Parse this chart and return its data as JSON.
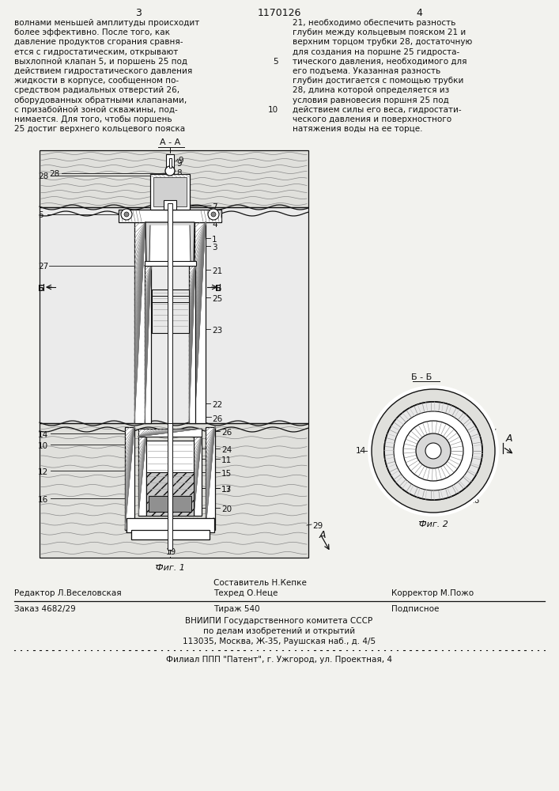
{
  "page_width": 7.07,
  "page_height": 10.0,
  "bg_color": "#f2f2ee",
  "text_color": "#111111",
  "header_left_num": "3",
  "header_center": "1170126",
  "header_right_num": "4",
  "col1_text": "волнами меньшей амплитуды происходит\nболее эффективно. После того, как\nдавление продуктов сгорания сравня-\nется с гидростатическим, открывают\nвыхлопной клапан 5, и поршень 25 под\nдействием гидростатического давления\nжидкости в корпусе, сообщенном по-\nсредством радиальных отверстий 26,\nоборудованных обратными клапанами,\nс призабойной зоной скважины, под-\nнимается. Для того, чтобы поршень\n25 достиг верхнего кольцевого пояска",
  "col2_text": "21, необходимо обеспечить разность\nглубин между кольцевым пояском 21 и\nверхним торцом трубки 28, достаточную\nдля создания на поршне 25 гидроста-\nтического давления, необходимого для\nего подъема. Указанная разность\nглубин достигается с помощью трубки\n28, длина которой определяется из\nусловия равновесия поршня 25 под\nдействием силы его веса, гидростати-\nческого давления и поверхностного\nнатяжения воды на ее торце.",
  "fig1_label": "Фиг. 1",
  "fig2_label": "Фиг. 2",
  "section_aa": "А - А",
  "section_bb": "Б - Б",
  "footer_composer": "Составитель Н.Кепке",
  "footer_editor": "Редактор Л.Веселовская",
  "footer_techred": "Техред О.Неце",
  "footer_corrector": "Корректор М.Пожо",
  "footer_order": "Заказ 4682/29",
  "footer_tirazh": "Тираж 540",
  "footer_podpisnoe": "Подписное",
  "footer_vniip1": "ВНИИПИ Государственного комитета СССР",
  "footer_vniip2": "по делам изобретений и открытий",
  "footer_vniip3": "113035, Москва, Ж-35, Раушская наб., д. 4/5",
  "footer_filial": "Филиал ППП \"Патент\", г. Ужгород, ул. Проектная, 4"
}
